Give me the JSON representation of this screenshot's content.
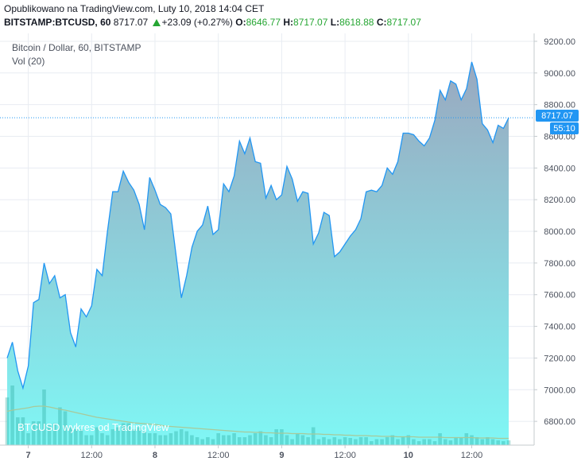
{
  "header": {
    "published": "Opublikowano na TradingView.com, Luty 10, 2018 14:04 CET",
    "symbol": "BITSTAMP:BTCUSD, 60",
    "last": "8717.07",
    "change": "+23.09 (+0.27%)",
    "open_label": "O:",
    "open": "8646.77",
    "high_label": "H:",
    "high": "8717.07",
    "low_label": "L:",
    "low": "8618.88",
    "close_label": "C:",
    "close": "8717.07"
  },
  "legend": {
    "series_title": "Bitcoin / Dollar, 60, BITSTAMP",
    "volume_title": "Vol (20)"
  },
  "watermark": "BTCUSD wykres od TradingView",
  "price_badge": "8717.07",
  "countdown_badge": "55:10",
  "colors": {
    "line": "#2196f3",
    "area_top": "#9aa8bf",
    "area_bottom": "#7ff7f5",
    "volume": "#26a69a",
    "volume_ma": "#a8c99a",
    "badge": "#2196f3",
    "grid": "#e8ecf2",
    "up": "#26a633"
  },
  "chart_data": {
    "type": "area",
    "ylim": [
      6650,
      9250
    ],
    "y_ticks": [
      "9200.00",
      "9000.00",
      "8800.00",
      "8600.00",
      "8400.00",
      "8200.00",
      "8000.00",
      "7800.00",
      "7600.00",
      "7400.00",
      "7200.00",
      "7000.00",
      "6800.00"
    ],
    "x_tick_labels": [
      "7",
      "12:00",
      "8",
      "12:00",
      "9",
      "12:00",
      "10",
      "12:00"
    ],
    "x_tick_positions": [
      4,
      16,
      28,
      40,
      52,
      64,
      76,
      88
    ],
    "current_price": 8717.07,
    "series": [
      {
        "values": [
          7200,
          7300,
          7120,
          7010,
          7150,
          7550,
          7570,
          7800,
          7670,
          7720,
          7580,
          7600,
          7360,
          7270,
          7510,
          7460,
          7530,
          7760,
          7720,
          8000,
          8250,
          8250,
          8380,
          8310,
          8260,
          8170,
          8010,
          8340,
          8260,
          8170,
          8150,
          8110,
          7850,
          7580,
          7720,
          7900,
          8000,
          8040,
          8160,
          7980,
          8010,
          8300,
          8250,
          8350,
          8570,
          8490,
          8590,
          8440,
          8430,
          8210,
          8290,
          8200,
          8230,
          8410,
          8330,
          8190,
          8250,
          8240,
          7920,
          7990,
          8120,
          8100,
          7840,
          7870,
          7920,
          7970,
          8010,
          8080,
          8250,
          8260,
          8250,
          8290,
          8400,
          8360,
          8440,
          8620,
          8620,
          8610,
          8570,
          8540,
          8590,
          8700,
          8890,
          8830,
          8950,
          8930,
          8830,
          8900,
          9070,
          8960,
          8680,
          8640,
          8560,
          8670,
          8650,
          8717
        ]
      }
    ],
    "volume": [
      120,
      150,
      70,
      70,
      30,
      60,
      60,
      140,
      50,
      55,
      95,
      85,
      45,
      40,
      40,
      25,
      25,
      45,
      30,
      25,
      40,
      45,
      55,
      55,
      40,
      45,
      35,
      30,
      30,
      25,
      25,
      30,
      35,
      40,
      35,
      25,
      20,
      15,
      20,
      15,
      30,
      25,
      25,
      30,
      20,
      20,
      25,
      30,
      35,
      25,
      20,
      40,
      40,
      25,
      15,
      30,
      25,
      20,
      45,
      15,
      20,
      15,
      20,
      15,
      20,
      18,
      15,
      20,
      20,
      10,
      15,
      15,
      20,
      25,
      15,
      20,
      25,
      15,
      10,
      15,
      15,
      10,
      30,
      15,
      12,
      20,
      20,
      30,
      25,
      20,
      15,
      20,
      15,
      12,
      10,
      12
    ],
    "volume_ma": [
      85,
      88,
      90,
      92,
      94,
      97,
      98,
      98,
      96,
      93,
      90,
      88,
      85,
      82,
      79,
      76,
      73,
      70,
      68,
      66,
      64,
      62,
      60,
      58,
      56,
      55,
      54,
      53,
      52,
      50,
      48,
      47,
      46,
      45,
      44,
      43,
      42,
      41,
      40,
      39,
      38,
      37,
      36,
      35,
      34,
      33,
      33,
      32,
      32,
      31,
      31,
      30,
      30,
      30,
      29,
      29,
      29,
      28,
      28,
      28,
      27,
      27,
      26,
      26,
      25,
      25,
      24,
      24,
      24,
      23,
      23,
      22,
      22,
      22,
      21,
      21,
      21,
      21,
      20,
      20,
      20,
      20,
      20,
      19,
      19,
      19,
      19,
      19,
      19,
      18,
      18,
      18,
      18,
      17,
      17,
      17
    ]
  }
}
